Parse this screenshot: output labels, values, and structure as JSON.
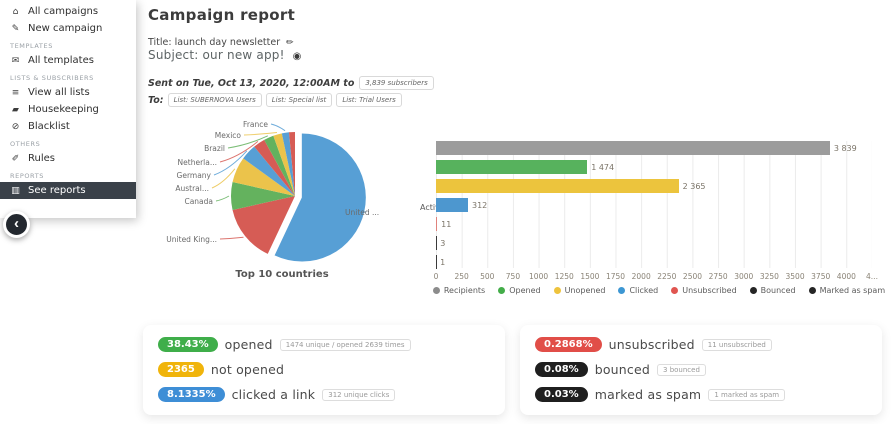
{
  "sidebar": {
    "items": [
      {
        "type": "link",
        "icon": "home-icon",
        "label": "All campaigns"
      },
      {
        "type": "link",
        "icon": "pencil-square-icon",
        "label": "New campaign"
      },
      {
        "type": "section",
        "label": "TEMPLATES"
      },
      {
        "type": "link",
        "icon": "envelope-icon",
        "label": "All templates"
      },
      {
        "type": "section",
        "label": "LISTS & SUBSCRIBERS"
      },
      {
        "type": "link",
        "icon": "list-icon",
        "label": "View all lists"
      },
      {
        "type": "link",
        "icon": "eraser-icon",
        "label": "Housekeeping"
      },
      {
        "type": "link",
        "icon": "ban-icon",
        "label": "Blacklist"
      },
      {
        "type": "section",
        "label": "OTHERS"
      },
      {
        "type": "link",
        "icon": "wand-icon",
        "label": "Rules"
      },
      {
        "type": "section",
        "label": "REPORTS"
      },
      {
        "type": "link",
        "icon": "bar-chart-icon",
        "label": "See reports",
        "active": true
      }
    ]
  },
  "header": {
    "title": "Campaign report",
    "campaign_title_label": "Title: launch day newsletter",
    "subject_label": "Subject: our new app!",
    "sent_on": "Sent on Tue, Oct 13, 2020, 12:00AM to",
    "subscribers_badge": "3,839 subscribers",
    "to_label": "To:",
    "to_badges": [
      "List: SUBERNOVA Users",
      "List: Special list",
      "List: Trial Users"
    ]
  },
  "chart_data": [
    {
      "type": "pie",
      "title": "Top 10 countries",
      "exploded_index": 0,
      "slices": [
        {
          "label": "United ...",
          "value": 57,
          "color": "#579fd5"
        },
        {
          "label": "United King...",
          "value": 14.5,
          "color": "#d65c55"
        },
        {
          "label": "Canada",
          "value": 7,
          "color": "#64b25e"
        },
        {
          "label": "Austral...",
          "value": 6.5,
          "color": "#ebc34b"
        },
        {
          "label": "Germany",
          "value": 4,
          "color": "#579fd5"
        },
        {
          "label": "Netherla...",
          "value": 3,
          "color": "#d65c55"
        },
        {
          "label": "Brazil",
          "value": 2.5,
          "color": "#64b25e"
        },
        {
          "label": "Mexico",
          "value": 2.2,
          "color": "#ebc34b"
        },
        {
          "label": "France",
          "value": 1.8,
          "color": "#579fd5"
        },
        {
          "label": "",
          "value": 1.5,
          "color": "#d65c55"
        }
      ]
    },
    {
      "type": "bar",
      "orientation": "horizontal",
      "ylabel": "Activity",
      "xmax": 4250,
      "xticks": [
        "0",
        "250",
        "500",
        "750",
        "1000",
        "1250",
        "1500",
        "1750",
        "2000",
        "2250",
        "2500",
        "2750",
        "3000",
        "3250",
        "3500",
        "3750",
        "4000",
        "4..."
      ],
      "series": [
        {
          "name": "Recipients",
          "value": 3839,
          "display": "3 839",
          "color": "#9c9c9c"
        },
        {
          "name": "Opened",
          "value": 1474,
          "display": "1 474",
          "color": "#57b25d"
        },
        {
          "name": "Unopened",
          "value": 2365,
          "display": "2 365",
          "color": "#ecc43d"
        },
        {
          "name": "Clicked",
          "value": 312,
          "display": "312",
          "color": "#4d97cf"
        },
        {
          "name": "Unsubscribed",
          "value": 11,
          "display": "11",
          "color": "#e0827c"
        },
        {
          "name": "Bounced",
          "value": 3,
          "display": "3",
          "color": "#3a3a3a"
        },
        {
          "name": "Marked as spam",
          "value": 1,
          "display": "1",
          "color": "#3a3a3a"
        }
      ],
      "legend": [
        {
          "label": "Recipients",
          "color": "#8c8c8c"
        },
        {
          "label": "Opened",
          "color": "#43ad49"
        },
        {
          "label": "Unopened",
          "color": "#eec33d"
        },
        {
          "label": "Clicked",
          "color": "#3d97d3"
        },
        {
          "label": "Unsubscribed",
          "color": "#e05550"
        },
        {
          "label": "Bounced",
          "color": "#252525"
        },
        {
          "label": "Marked as spam",
          "color": "#252525"
        }
      ]
    }
  ],
  "cards": [
    {
      "rows": [
        {
          "pill": "38.43%",
          "pill_color": "#3fae4a",
          "label": "opened",
          "badge": "1474 unique / opened 2639 times"
        },
        {
          "pill": "2365",
          "pill_color": "#f0b40b",
          "label": "not opened",
          "badge": null
        },
        {
          "pill": "8.1335%",
          "pill_color": "#3e8ed6",
          "label": "clicked a link",
          "badge": "312 unique clicks"
        }
      ]
    },
    {
      "rows": [
        {
          "pill": "0.2868%",
          "pill_color": "#e14e48",
          "label": "unsubscribed",
          "badge": "11 unsubscribed"
        },
        {
          "pill": "0.08%",
          "pill_color": "#1f1f1f",
          "label": "bounced",
          "badge": "3 bounced"
        },
        {
          "pill": "0.03%",
          "pill_color": "#1f1f1f",
          "label": "marked as spam",
          "badge": "1 marked as spam"
        }
      ]
    }
  ]
}
